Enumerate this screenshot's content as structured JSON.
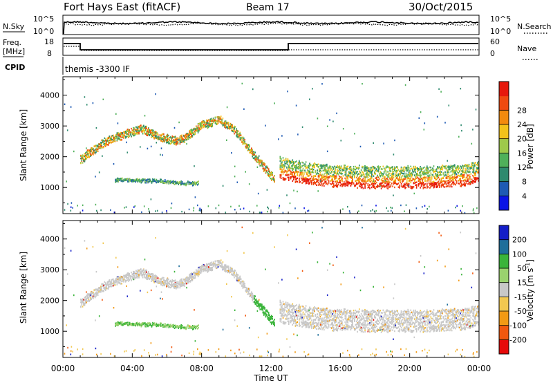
{
  "header": {
    "title": "Fort Hays East (fitACF)",
    "beam": "Beam 17",
    "date": "30/Oct/2015"
  },
  "noise_panel": {
    "left_label": "N.Sky",
    "left_ticks": [
      "10^5",
      "10^0"
    ],
    "right_label": "N.Search",
    "right_ticks": [
      "10^5",
      "10^0"
    ]
  },
  "freq_panel": {
    "left_label_1": "Freq.",
    "left_label_2": "[MHz]",
    "left_ticks": [
      "18",
      "8"
    ],
    "right_label": "Nave",
    "right_ticks": [
      "60",
      "0"
    ]
  },
  "cpid": {
    "label": "CPID",
    "text": "themis -3300 IF"
  },
  "colors": {
    "power": [
      "#0a14e6",
      "#1e5ab4",
      "#2e8a6e",
      "#4fb05a",
      "#9ec94a",
      "#f2c21a",
      "#f28a0e",
      "#ef4a10",
      "#e6180c"
    ],
    "velocity": [
      "#e60a0a",
      "#f2580e",
      "#f29a14",
      "#f2c850",
      "#c8c8c8",
      "#9ad26e",
      "#3ab43a",
      "#1e6e9a",
      "#141ec8"
    ]
  },
  "chart_data": [
    {
      "type": "heatmap",
      "name": "power",
      "ylabel": "Slant Range [km]",
      "y_ticks": [
        "1000",
        "2000",
        "3000",
        "4000"
      ],
      "y_tick_values": [
        1000,
        2000,
        3000,
        4000
      ],
      "ylim": [
        150,
        4600
      ],
      "xlim": [
        0,
        24
      ],
      "colorbar_label": "Power [dB]",
      "colorbar_ticks": [
        "4",
        "8",
        "12",
        "16",
        "20",
        "24",
        "28"
      ],
      "colorbar_range": [
        0,
        32
      ],
      "bands": [
        {
          "x": [
            1.0,
            1.5,
            2.5,
            3.5,
            4.5,
            5.5,
            6.5,
            7.0,
            8.0,
            9.0,
            9.8,
            10.5,
            11.2,
            11.8,
            12.2
          ],
          "y": [
            1900,
            2100,
            2500,
            2700,
            2900,
            2650,
            2500,
            2600,
            3000,
            3200,
            2900,
            2400,
            1900,
            1500,
            1250
          ],
          "width": 250
        },
        {
          "x": [
            12.5,
            13.5,
            14.5,
            15.5,
            16.5,
            17.5,
            18.5,
            19.5,
            20.5,
            21.5,
            22.5,
            23.5,
            24.0
          ],
          "y": [
            1550,
            1450,
            1350,
            1300,
            1280,
            1250,
            1250,
            1250,
            1260,
            1270,
            1300,
            1350,
            1450
          ],
          "width": 700
        },
        {
          "x": [
            3.0,
            4.0,
            5.0,
            6.0,
            7.0,
            7.8
          ],
          "y": [
            1250,
            1240,
            1230,
            1200,
            1150,
            1150
          ],
          "width": 90
        }
      ]
    },
    {
      "type": "heatmap",
      "name": "velocity",
      "ylabel": "Slant Range [km]",
      "xlabel": "Time UT",
      "x_ticks": [
        "00:00",
        "04:00",
        "08:00",
        "12:00",
        "16:00",
        "20:00",
        "00:00"
      ],
      "x_tick_values": [
        0,
        4,
        8,
        12,
        16,
        20,
        24
      ],
      "y_ticks": [
        "1000",
        "2000",
        "3000",
        "4000"
      ],
      "y_tick_values": [
        1000,
        2000,
        3000,
        4000
      ],
      "ylim": [
        150,
        4600
      ],
      "xlim": [
        0,
        24
      ],
      "colorbar_label": "Velocity [m s",
      "colorbar_label_sup": "-1",
      "colorbar_label_end": "]",
      "colorbar_ticks": [
        "-200",
        "-100",
        "-50",
        "-15",
        "15",
        "50",
        "100",
        "200"
      ],
      "colorbar_range": [
        -250,
        250
      ]
    }
  ]
}
